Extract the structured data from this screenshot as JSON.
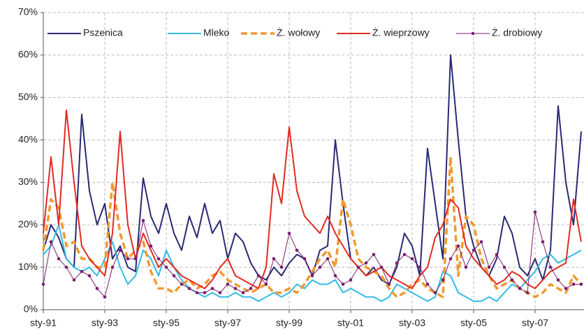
{
  "chart_data": {
    "type": "line",
    "categories": [
      "sty-91",
      null,
      null,
      null,
      null,
      null,
      null,
      null,
      "sty-93",
      null,
      null,
      null,
      null,
      null,
      null,
      null,
      "sty-95",
      null,
      null,
      null,
      null,
      null,
      null,
      null,
      "sty-97",
      null,
      null,
      null,
      null,
      null,
      null,
      null,
      "sty-99",
      null,
      null,
      null,
      null,
      null,
      null,
      null,
      "sty-01",
      null,
      null,
      null,
      null,
      null,
      null,
      null,
      "sty-03",
      null,
      null,
      null,
      null,
      null,
      null,
      null,
      "sty-05",
      null,
      null,
      null,
      null,
      null,
      null,
      null,
      "sty-07",
      null,
      null,
      null,
      null,
      null,
      null
    ],
    "ylim": [
      0,
      70
    ],
    "yticks": [
      {
        "value": 0,
        "label": "0%"
      },
      {
        "value": 10,
        "label": "10%"
      },
      {
        "value": 20,
        "label": "20%"
      },
      {
        "value": 30,
        "label": "30%"
      },
      {
        "value": 40,
        "label": "40%"
      },
      {
        "value": 50,
        "label": "50%"
      },
      {
        "value": 60,
        "label": "60%"
      },
      {
        "value": 70,
        "label": "70%"
      }
    ],
    "grid": true,
    "legend": "top",
    "series": [
      {
        "name": "Pszenica",
        "color": "#2a2a72",
        "style": "solid",
        "values": [
          14,
          20,
          17,
          12,
          10,
          46,
          28,
          20,
          25,
          12,
          15,
          10,
          9,
          31,
          22,
          18,
          25,
          18,
          14,
          22,
          17,
          25,
          18,
          21,
          12,
          18,
          16,
          11,
          8,
          7,
          10,
          8,
          11,
          13,
          12,
          8,
          14,
          15,
          40,
          25,
          12,
          10,
          8,
          10,
          7,
          6,
          10,
          18,
          15,
          8,
          38,
          25,
          12,
          60,
          40,
          22,
          15,
          10,
          8,
          12,
          22,
          18,
          10,
          8,
          12,
          7,
          14,
          48,
          30,
          20,
          42
        ]
      },
      {
        "name": "Mleko",
        "color": "#33bbe6",
        "style": "solid",
        "values": [
          13,
          15,
          20,
          12,
          10,
          9,
          10,
          8,
          12,
          16,
          10,
          6,
          8,
          14,
          12,
          8,
          14,
          10,
          7,
          5,
          4,
          3,
          4,
          3,
          3,
          4,
          3,
          3,
          2,
          3,
          4,
          3,
          4,
          6,
          5,
          7,
          6,
          6,
          7,
          4,
          5,
          4,
          3,
          3,
          2,
          3,
          6,
          5,
          4,
          3,
          2,
          3,
          9,
          8,
          4,
          3,
          2,
          2,
          3,
          2,
          4,
          6,
          5,
          7,
          9,
          12,
          13,
          11,
          12,
          13,
          14
        ]
      },
      {
        "name": "Ż. wołowy",
        "color": "#f09a30",
        "style": "dashed",
        "values": [
          14,
          26,
          24,
          15,
          16,
          12,
          12,
          10,
          10,
          30,
          18,
          12,
          14,
          16,
          9,
          5,
          5,
          4,
          6,
          7,
          5,
          6,
          8,
          9,
          7,
          6,
          5,
          4,
          5,
          6,
          4,
          4,
          5,
          4,
          6,
          9,
          12,
          14,
          10,
          26,
          20,
          12,
          10,
          9,
          8,
          5,
          3,
          4,
          6,
          7,
          5,
          4,
          3,
          36,
          8,
          22,
          20,
          12,
          8,
          5,
          6,
          7,
          5,
          4,
          3,
          4,
          6,
          5,
          4,
          8,
          6
        ]
      },
      {
        "name": "Ż. wieprzowy",
        "color": "#e02b20",
        "style": "solid",
        "values": [
          18,
          36,
          20,
          47,
          30,
          15,
          12,
          10,
          8,
          18,
          42,
          20,
          12,
          18,
          14,
          10,
          12,
          10,
          8,
          7,
          6,
          5,
          7,
          10,
          12,
          8,
          7,
          6,
          5,
          10,
          32,
          25,
          43,
          28,
          22,
          20,
          18,
          22,
          18,
          15,
          12,
          10,
          8,
          9,
          10,
          8,
          7,
          6,
          5,
          8,
          10,
          17,
          20,
          26,
          24,
          15,
          12,
          10,
          8,
          6,
          7,
          9,
          8,
          6,
          5,
          7,
          9,
          10,
          11,
          26,
          16
        ]
      },
      {
        "name": "Ż. drobiowy",
        "color": "#7a1f6e",
        "style": "solid",
        "marker": "circle",
        "values": [
          6,
          16,
          12,
          10,
          7,
          9,
          8,
          5,
          3,
          10,
          14,
          12,
          12,
          21,
          15,
          12,
          10,
          8,
          6,
          5,
          4,
          4,
          5,
          4,
          6,
          5,
          4,
          5,
          8,
          6,
          12,
          10,
          18,
          14,
          12,
          8,
          10,
          12,
          8,
          6,
          7,
          10,
          11,
          13,
          10,
          6,
          11,
          13,
          12,
          10,
          6,
          4,
          7,
          12,
          15,
          10,
          14,
          16,
          10,
          13,
          10,
          7,
          5,
          4,
          23,
          16,
          10,
          7,
          5,
          6,
          6
        ]
      }
    ]
  }
}
